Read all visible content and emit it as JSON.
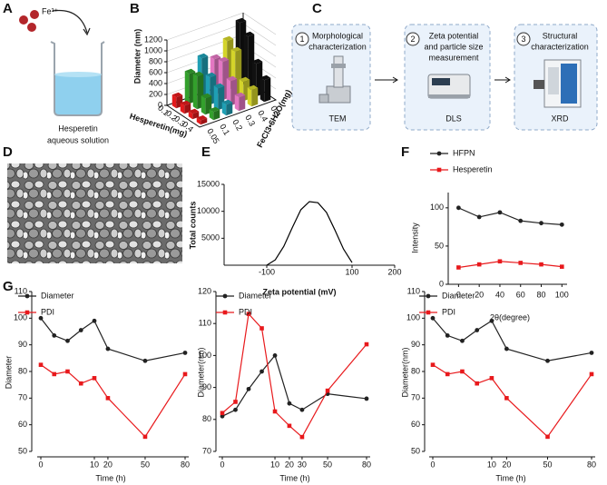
{
  "panel_labels": [
    "A",
    "B",
    "C",
    "D",
    "E",
    "F",
    "G"
  ],
  "panel_a": {
    "ion": "Fe³⁺",
    "caption": [
      "Hesperetin",
      "aqueous solution"
    ]
  },
  "panel_c": {
    "steps": [
      {
        "number": "1",
        "title": [
          "Morphological",
          "characterization"
        ],
        "method": "TEM"
      },
      {
        "number": "2",
        "title": [
          "Zeta potential",
          "and particle size",
          "measurement"
        ],
        "method": "DLS"
      },
      {
        "number": "3",
        "title": [
          "Structural",
          "characterization"
        ],
        "method": "XRD"
      }
    ]
  },
  "chart_data": [
    {
      "type": "bar3d",
      "ylabel": "Diameter (nm)",
      "xlabel": "Hesperetin(mg)",
      "zlabel": "FeCl3•6H2O(mg)",
      "categories": [
        "0.1",
        "0.2",
        "0.3",
        "0.4"
      ],
      "ylim": [
        0,
        1200
      ],
      "yticks": [
        0,
        200,
        400,
        600,
        800,
        1000,
        1200
      ],
      "grid": true,
      "series": [
        {
          "name": "0.05",
          "color": "#e31a1c",
          "values": [
            200,
            150,
            100,
            80
          ]
        },
        {
          "name": "0.1",
          "color": "#33a02c",
          "values": [
            550,
            600,
            300,
            150
          ]
        },
        {
          "name": "0.2",
          "color": "#1f9fb4",
          "values": [
            750,
            500,
            400,
            200
          ]
        },
        {
          "name": "0.3",
          "color": "#e377c2",
          "values": [
            650,
            700,
            450,
            250
          ]
        },
        {
          "name": "0.4",
          "color": "#d4d42a",
          "values": [
            900,
            800,
            350,
            300
          ]
        },
        {
          "name": "0.5",
          "color": "#111111",
          "values": [
            1150,
            1000,
            600,
            400
          ]
        }
      ]
    },
    {
      "type": "line",
      "xlabel": "Zeta potential (mV)",
      "ylabel": "Total counts",
      "x": [
        -100,
        -80,
        -60,
        -40,
        -20,
        0,
        20,
        40,
        60,
        80,
        100
      ],
      "series": [
        {
          "color": "#000000",
          "values": [
            0,
            1000,
            3500,
            7000,
            10300,
            11800,
            11600,
            9800,
            6500,
            3000,
            500
          ]
        }
      ],
      "xlim": [
        -200,
        200
      ],
      "xticks": [
        -100,
        100,
        200
      ],
      "ylim": [
        0,
        15000
      ],
      "yticks": [
        5000,
        10000,
        15000
      ]
    },
    {
      "type": "line",
      "xlabel": "2θ(degree)",
      "ylabel": "Intensity",
      "legend": "top-left",
      "x": [
        0,
        20,
        40,
        60,
        80,
        100
      ],
      "series": [
        {
          "name": "HFPN",
          "color": "#222222",
          "marker": "circle",
          "values": [
            100,
            88,
            94,
            83,
            80,
            78
          ]
        },
        {
          "name": "Hesperetin",
          "color": "#e8191c",
          "marker": "square",
          "values": [
            22,
            26,
            30,
            28,
            26,
            23
          ]
        }
      ],
      "xlim": [
        -10,
        105
      ],
      "xticks": [
        0,
        20,
        40,
        60,
        80,
        100
      ],
      "ylim": [
        0,
        120
      ],
      "yticks": [
        0,
        50,
        100
      ]
    },
    {
      "type": "line",
      "xlabel": "Time (h)",
      "ylabel": "Diameter",
      "legend": "top-left",
      "x": [
        0,
        2.5,
        5,
        7.5,
        10,
        20,
        50,
        80
      ],
      "series": [
        {
          "name": "Diameter",
          "color": "#222222",
          "marker": "circle",
          "values": [
            100,
            93.5,
            91.5,
            95.5,
            99,
            88.5,
            84,
            87
          ]
        },
        {
          "name": "PDI",
          "color": "#e8191c",
          "marker": "square",
          "values": [
            82.5,
            79,
            80,
            75.5,
            77.5,
            70,
            55.5,
            79
          ]
        }
      ],
      "xlim": [
        0,
        80
      ],
      "xticks": [
        0,
        10,
        20,
        50,
        80
      ],
      "ylim": [
        50,
        110
      ],
      "yticks": [
        50,
        60,
        70,
        80,
        90,
        100,
        110
      ]
    },
    {
      "type": "line",
      "xlabel": "Time (h)",
      "ylabel": "Diameter(nm)",
      "legend": "top-left",
      "x": [
        0,
        2.5,
        5,
        7.5,
        10,
        20,
        30,
        50,
        80
      ],
      "series": [
        {
          "name": "Diameter",
          "color": "#222222",
          "marker": "circle",
          "values": [
            81,
            83,
            89.5,
            95,
            100,
            85,
            83,
            88,
            86.5
          ]
        },
        {
          "name": "PDI",
          "color": "#e8191c",
          "marker": "square",
          "values": [
            82,
            85.5,
            113,
            108.5,
            82.5,
            78,
            74.5,
            89,
            103.5
          ]
        }
      ],
      "xlim": [
        0,
        80
      ],
      "xticks": [
        0,
        10,
        20,
        30,
        50,
        80
      ],
      "ylim": [
        70,
        120
      ],
      "yticks": [
        70,
        80,
        90,
        100,
        110,
        120
      ]
    },
    {
      "type": "line",
      "xlabel": "Time (h)",
      "ylabel": "Diameter(nm)",
      "legend": "top-left",
      "x": [
        0,
        2.5,
        5,
        7.5,
        10,
        20,
        50,
        80
      ],
      "series": [
        {
          "name": "Diameter",
          "color": "#222222",
          "marker": "circle",
          "values": [
            100,
            93.5,
            91.5,
            95.5,
            99,
            88.5,
            84,
            87
          ]
        },
        {
          "name": "PDI",
          "color": "#e8191c",
          "marker": "square",
          "values": [
            82.5,
            79,
            80,
            75.5,
            77.5,
            70,
            55.5,
            79
          ]
        }
      ],
      "xlim": [
        0,
        80
      ],
      "xticks": [
        0,
        10,
        20,
        50,
        80
      ],
      "ylim": [
        50,
        110
      ],
      "yticks": [
        50,
        60,
        70,
        80,
        90,
        100,
        110
      ]
    }
  ]
}
